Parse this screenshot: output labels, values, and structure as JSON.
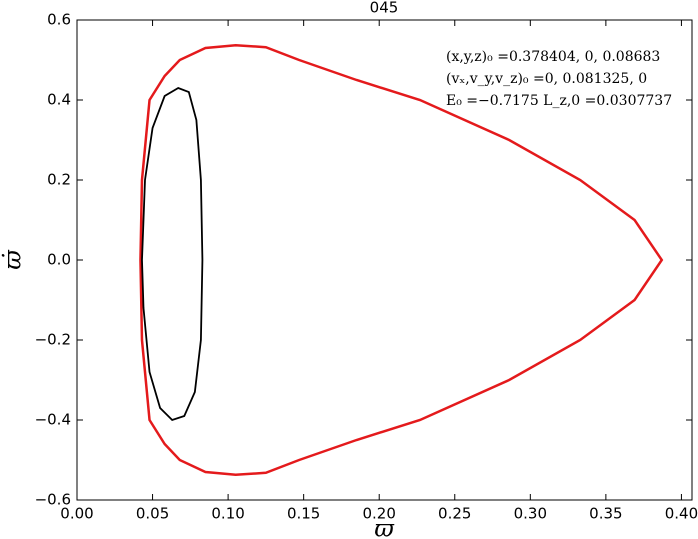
{
  "chart_data": {
    "type": "line",
    "title": "045",
    "xlabel": "ϖ",
    "ylabel": "ϖ̇",
    "annotations": [
      "(x,y,z)₀ =0.378404, 0, 0.08683",
      "(vₓ,v_y,v_z)₀ =0, 0.081325, 0",
      "E₀ =−0.7175  L_z,0 =0.0307737"
    ],
    "xlim": [
      0,
      0.407
    ],
    "ylim": [
      -0.6,
      0.6
    ],
    "xticks": [
      {
        "value": 0,
        "label": "0.00"
      },
      {
        "value": 0.05,
        "label": "0.05"
      },
      {
        "value": 0.1,
        "label": "0.10"
      },
      {
        "value": 0.15,
        "label": "0.15"
      },
      {
        "value": 0.2,
        "label": "0.20"
      },
      {
        "value": 0.25,
        "label": "0.25"
      },
      {
        "value": 0.3,
        "label": "0.30"
      },
      {
        "value": 0.35,
        "label": "0.35"
      },
      {
        "value": 0.4,
        "label": "0.40"
      }
    ],
    "yticks": [
      {
        "value": -0.6,
        "label": "−0.6"
      },
      {
        "value": -0.4,
        "label": "−0.4"
      },
      {
        "value": -0.2,
        "label": "−0.2"
      },
      {
        "value": 0,
        "label": "0.0"
      },
      0.2,
      0.4,
      0.6
    ],
    "series": [
      {
        "color": "#e41a1c",
        "x": [
          0.042,
          0.043,
          0.048,
          0.058,
          0.068,
          0.085,
          0.105,
          0.125,
          0.147,
          0.185,
          0.227,
          0.286,
          0.333,
          0.369,
          0.387,
          0.369,
          0.333,
          0.286,
          0.227,
          0.185,
          0.147,
          0.125,
          0.105,
          0.085,
          0.068,
          0.058,
          0.048,
          0.043,
          0.042
        ],
        "values": [
          0,
          0.2,
          0.4,
          0.46,
          0.5,
          0.53,
          0.537,
          0.532,
          0.5,
          0.45,
          0.4,
          0.3,
          0.2,
          0.1,
          0,
          -0.1,
          -0.2,
          -0.3,
          -0.4,
          -0.45,
          -0.5,
          -0.532,
          -0.537,
          -0.53,
          -0.5,
          -0.46,
          -0.4,
          -0.2,
          0
        ]
      },
      {
        "color": "#000000",
        "x": [
          0.043,
          0.045,
          0.05,
          0.058,
          0.067,
          0.074,
          0.079,
          0.082,
          0.083,
          0.082,
          0.078,
          0.071,
          0.063,
          0.055,
          0.048,
          0.044,
          0.043
        ],
        "values": [
          0,
          0.2,
          0.33,
          0.41,
          0.43,
          0.42,
          0.35,
          0.2,
          0,
          -0.2,
          -0.33,
          -0.39,
          -0.4,
          -0.37,
          -0.28,
          -0.12,
          0
        ]
      }
    ]
  }
}
